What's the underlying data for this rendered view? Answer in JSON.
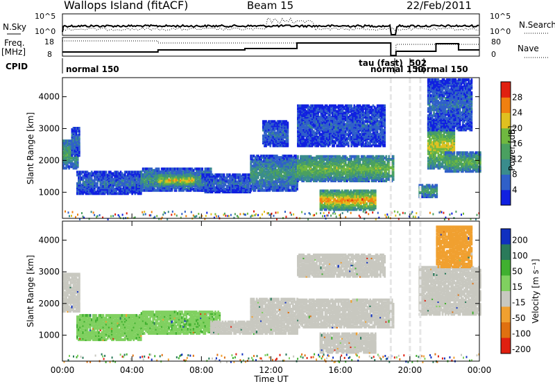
{
  "header": {
    "site": "Wallops Island (fitACF)",
    "beam": "Beam 15",
    "date": "22/Feb/2011"
  },
  "top_panels": {
    "nsky_label": "N.Sky",
    "nsky_ticks": [
      "10^5",
      "10^0"
    ],
    "nsearch_label": "N.Search",
    "nsearch_ticks": [
      "10^5",
      "10^0"
    ],
    "freq_label": "Freq.",
    "freq_unit": "[MHz]",
    "freq_ticks": [
      "18",
      "8"
    ],
    "nave_label": "Nave",
    "nave_ticks": [
      "80",
      "0"
    ],
    "cpid_label": "CPID",
    "cpid_modes": [
      {
        "text": "normal 150",
        "t": 0.1
      },
      {
        "text": "tau (fast)",
        "t": 17.9
      },
      {
        "text": "normal 150",
        "t": 18.0
      },
      {
        "text": "normal 150",
        "t": 20.2
      },
      {
        "text": "502",
        "t": 19.8
      }
    ]
  },
  "chart_data": [
    {
      "type": "heatmap",
      "name": "power",
      "ylabel": "Slant Range [km]",
      "yticks": [
        1000,
        2000,
        3000,
        4000
      ],
      "ylim": [
        180,
        4600
      ],
      "xlim": [
        0,
        24
      ],
      "colorbar_label": "Power [dB]",
      "colorbar_ticks": [
        "4",
        "8",
        "12",
        "16",
        "20",
        "24",
        "28"
      ],
      "colorbar_range": [
        0,
        31
      ],
      "colors": [
        "#1020e0",
        "#3060c8",
        "#3a8c8c",
        "#4aa060",
        "#70b840",
        "#e0c020",
        "#f08010",
        "#e02010"
      ],
      "echo_regions": [
        {
          "t0": 0.0,
          "t1": 0.9,
          "r0": 1800,
          "r1": 2700,
          "p": 12
        },
        {
          "t0": 0.5,
          "t1": 1.0,
          "r0": 2200,
          "r1": 3100,
          "p": 6
        },
        {
          "t0": 0.8,
          "t1": 4.5,
          "r0": 1000,
          "r1": 1700,
          "p": 6
        },
        {
          "t0": 4.5,
          "t1": 8.5,
          "r0": 1100,
          "r1": 1800,
          "p": 10
        },
        {
          "t0": 5.5,
          "t1": 7.5,
          "r0": 1250,
          "r1": 1600,
          "p": 19
        },
        {
          "t0": 8.0,
          "t1": 10.8,
          "r0": 1050,
          "r1": 1600,
          "p": 6
        },
        {
          "t0": 10.8,
          "t1": 13.5,
          "r0": 1100,
          "r1": 2200,
          "p": 10
        },
        {
          "t0": 11.5,
          "t1": 13.0,
          "r0": 2500,
          "r1": 3300,
          "p": 6
        },
        {
          "t0": 13.5,
          "t1": 19.0,
          "r0": 1400,
          "r1": 2200,
          "p": 15
        },
        {
          "t0": 14.8,
          "t1": 18.0,
          "r0": 500,
          "r1": 1100,
          "p": 22
        },
        {
          "t0": 13.5,
          "t1": 18.5,
          "r0": 2500,
          "r1": 3800,
          "p": 5
        },
        {
          "t0": 20.5,
          "t1": 21.5,
          "r0": 900,
          "r1": 1300,
          "p": 12
        },
        {
          "t0": 21.0,
          "t1": 22.5,
          "r0": 1800,
          "r1": 3200,
          "p": 18
        },
        {
          "t0": 22.0,
          "t1": 24.0,
          "r0": 1700,
          "r1": 2300,
          "p": 14
        },
        {
          "t0": 21.0,
          "t1": 23.5,
          "r0": 3000,
          "r1": 4600,
          "p": 6
        }
      ]
    },
    {
      "type": "heatmap",
      "name": "velocity",
      "ylabel": "Slant Range [km]",
      "yticks": [
        1000,
        2000,
        3000,
        4000
      ],
      "ylim": [
        180,
        4600
      ],
      "xlim": [
        0,
        24
      ],
      "xticks": [
        "00:00",
        "04:00",
        "08:00",
        "12:00",
        "16:00",
        "20:00",
        "00:00"
      ],
      "xlabel": "Time UT",
      "colorbar_label": "Velocity [m s⁻¹]",
      "colorbar_ticks": [
        "200",
        "100",
        "50",
        "15",
        "-15",
        "-50",
        "-100",
        "-200"
      ],
      "colors": [
        "#1030c0",
        "#2a7a5a",
        "#40b030",
        "#80d060",
        "#c8c8c0",
        "#f0a030",
        "#e07010",
        "#e02010"
      ],
      "echo_regions": [
        {
          "t0": 0.0,
          "t1": 1.0,
          "r0": 1800,
          "r1": 3000,
          "v": 0
        },
        {
          "t0": 0.8,
          "t1": 4.5,
          "r0": 900,
          "r1": 1700,
          "v": 40
        },
        {
          "t0": 4.5,
          "t1": 9.0,
          "r0": 1100,
          "r1": 1800,
          "v": 40
        },
        {
          "t0": 8.5,
          "t1": 10.8,
          "r0": 1100,
          "r1": 1500,
          "v": 0
        },
        {
          "t0": 10.8,
          "t1": 13.5,
          "r0": 1100,
          "r1": 2200,
          "v": 0
        },
        {
          "t0": 13.5,
          "t1": 19.0,
          "r0": 1300,
          "r1": 2200,
          "v": 0
        },
        {
          "t0": 14.8,
          "t1": 18.0,
          "r0": 500,
          "r1": 1100,
          "v": 0
        },
        {
          "t0": 13.5,
          "t1": 18.5,
          "r0": 2900,
          "r1": 3600,
          "v": 0
        },
        {
          "t0": 20.5,
          "t1": 24.0,
          "r0": 1700,
          "r1": 3200,
          "v": 0
        },
        {
          "t0": 21.5,
          "t1": 23.5,
          "r0": 3200,
          "r1": 4500,
          "v": -30
        }
      ]
    }
  ]
}
